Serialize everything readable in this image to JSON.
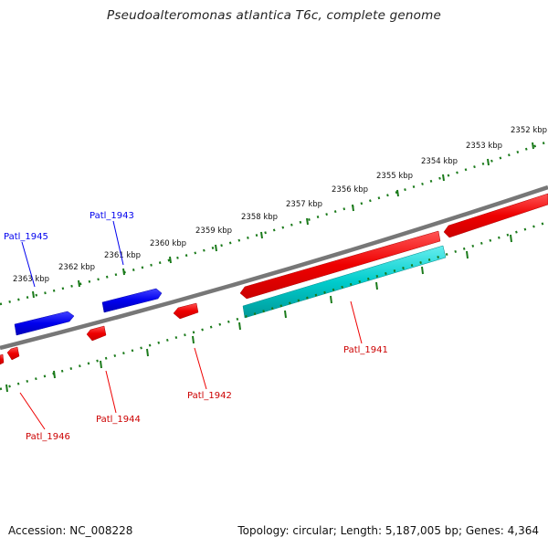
{
  "title": "Pseudoalteromonas atlantica T6c, complete genome",
  "footer": {
    "accession": "Accession: NC_008228",
    "summary": "Topology: circular; Length: 5,187,005 bp; Genes: 4,364"
  },
  "colors": {
    "forward": "#0000ee",
    "reverse": "#ee0000",
    "rna": "#00cccc",
    "backbone": "#777777",
    "ticks": "#1a7a1a"
  },
  "kbp_labels": [
    "2352 kbp",
    "2353 kbp",
    "2354 kbp",
    "2355 kbp",
    "2356 kbp",
    "2357 kbp",
    "2358 kbp",
    "2359 kbp",
    "2360 kbp",
    "2361 kbp",
    "2362 kbp",
    "2363 kbp"
  ],
  "gene_labels": {
    "patl_1941": "Patl_1941",
    "patl_1942": "Patl_1942",
    "patl_1943": "Patl_1943",
    "patl_1944": "Patl_1944",
    "patl_1945": "Patl_1945",
    "patl_1946": "Patl_1946"
  }
}
